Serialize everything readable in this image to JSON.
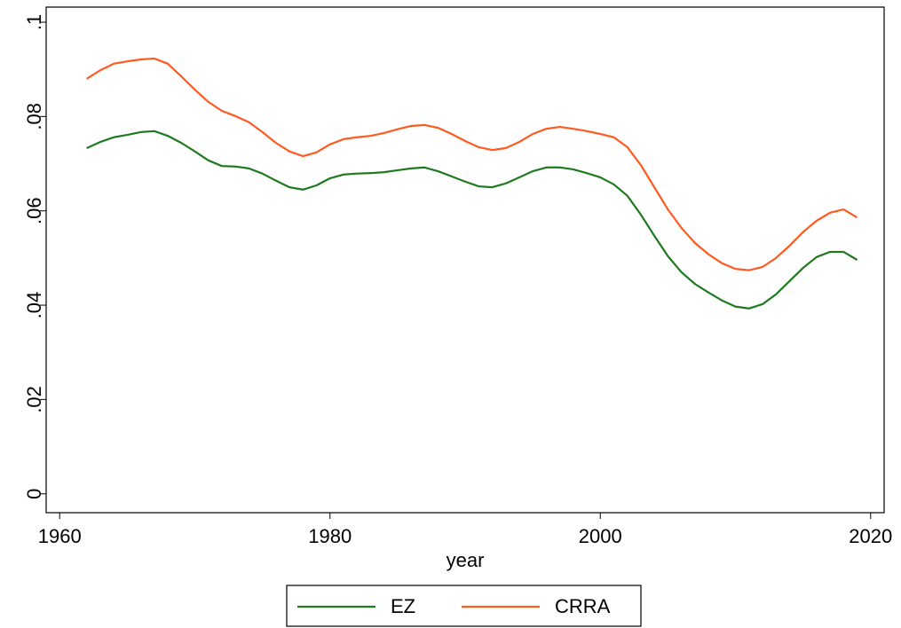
{
  "chart_data": {
    "type": "line",
    "xlabel": "year",
    "x": [
      1962,
      1963,
      1964,
      1965,
      1966,
      1967,
      1968,
      1969,
      1970,
      1971,
      1972,
      1973,
      1974,
      1975,
      1976,
      1977,
      1978,
      1979,
      1980,
      1981,
      1982,
      1983,
      1984,
      1985,
      1986,
      1987,
      1988,
      1989,
      1990,
      1991,
      1992,
      1993,
      1994,
      1995,
      1996,
      1997,
      1998,
      1999,
      2000,
      2001,
      2002,
      2003,
      2004,
      2005,
      2006,
      2007,
      2008,
      2009,
      2010,
      2011,
      2012,
      2013,
      2014,
      2015,
      2016,
      2017,
      2018,
      2019
    ],
    "series": [
      {
        "name": "EZ",
        "color": "#1f7a1f",
        "values": [
          0.0733,
          0.0746,
          0.0756,
          0.0761,
          0.0767,
          0.0769,
          0.0759,
          0.0744,
          0.0726,
          0.0707,
          0.0695,
          0.0694,
          0.069,
          0.0679,
          0.0664,
          0.065,
          0.0645,
          0.0654,
          0.0669,
          0.0677,
          0.0679,
          0.068,
          0.0682,
          0.0686,
          0.069,
          0.0692,
          0.0684,
          0.0673,
          0.0662,
          0.0652,
          0.065,
          0.0658,
          0.0671,
          0.0684,
          0.0692,
          0.0692,
          0.0688,
          0.068,
          0.0671,
          0.0656,
          0.0632,
          0.0592,
          0.0547,
          0.0504,
          0.047,
          0.0445,
          0.0427,
          0.041,
          0.0397,
          0.0393,
          0.0402,
          0.0423,
          0.0451,
          0.0479,
          0.0502,
          0.0513,
          0.0513,
          0.0496
        ]
      },
      {
        "name": "CRRA",
        "color": "#ff5a1f",
        "values": [
          0.088,
          0.0898,
          0.0912,
          0.0917,
          0.0921,
          0.0923,
          0.0912,
          0.0885,
          0.0857,
          0.0831,
          0.0812,
          0.0801,
          0.0788,
          0.0767,
          0.0744,
          0.0726,
          0.0716,
          0.0724,
          0.0741,
          0.0752,
          0.0756,
          0.0759,
          0.0765,
          0.0773,
          0.078,
          0.0782,
          0.0776,
          0.0763,
          0.0748,
          0.0735,
          0.0729,
          0.0733,
          0.0746,
          0.0763,
          0.0774,
          0.0778,
          0.0774,
          0.0769,
          0.0763,
          0.0756,
          0.0735,
          0.0697,
          0.065,
          0.0603,
          0.0564,
          0.0532,
          0.0508,
          0.0489,
          0.0477,
          0.0474,
          0.0481,
          0.05,
          0.0526,
          0.0555,
          0.0579,
          0.0596,
          0.0603,
          0.0586
        ]
      }
    ],
    "xlim": [
      1959,
      2021
    ],
    "xticks": [
      1960,
      1980,
      2000,
      2020
    ],
    "ylim": [
      -0.004,
      0.1032
    ],
    "yticks": [
      0,
      {
        "value": 0.02,
        "label": ".02"
      },
      {
        "value": 0.04,
        "label": ".04"
      },
      {
        "value": 0.06,
        "label": ".06"
      },
      {
        "value": 0.08,
        "label": ".08"
      },
      {
        "value": 0.1,
        "label": ".1"
      }
    ],
    "grid": false,
    "legend": "bottom"
  }
}
